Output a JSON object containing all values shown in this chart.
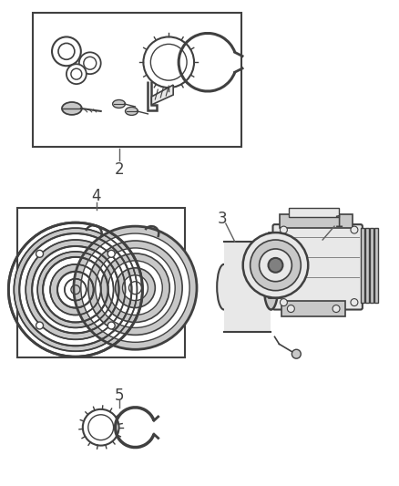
{
  "background_color": "#ffffff",
  "border_color": "#404040",
  "line_color": "#606060",
  "part_dark": "#404040",
  "part_mid": "#808080",
  "part_light": "#c8c8c8",
  "part_vlight": "#e8e8e8",
  "figsize": [
    4.38,
    5.33
  ],
  "dpi": 100
}
